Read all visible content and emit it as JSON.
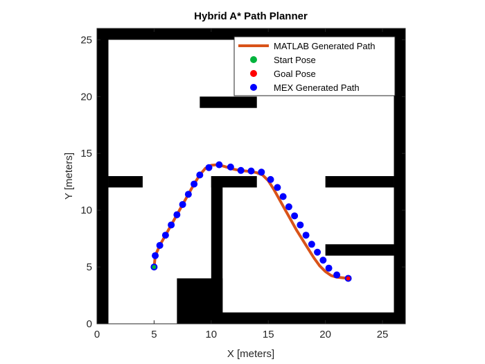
{
  "chart_data": {
    "type": "map-plot",
    "title": "Hybrid A* Path Planner",
    "xlabel": "X [meters]",
    "ylabel": "Y [meters]",
    "xlim": [
      0,
      27
    ],
    "ylim": [
      0,
      26
    ],
    "xticks": [
      0,
      5,
      10,
      15,
      20,
      25
    ],
    "yticks": [
      0,
      5,
      10,
      15,
      20,
      25
    ],
    "legend_position": "top-right",
    "colors": {
      "matlab_path": "#D95319",
      "start_pose": "#00B33C",
      "goal_pose": "#FF0000",
      "mex_path": "#0000FF",
      "obstacle": "#000000"
    },
    "legend": [
      {
        "label": "MATLAB Generated Path",
        "kind": "line",
        "color": "#D95319"
      },
      {
        "label": "Start Pose",
        "kind": "dot",
        "color": "#00B33C"
      },
      {
        "label": "Goal Pose",
        "kind": "dot",
        "color": "#FF0000"
      },
      {
        "label": "MEX Generated Path",
        "kind": "dot",
        "color": "#0000FF"
      }
    ],
    "obstacles": [
      {
        "x0": 0,
        "x1": 27,
        "y0": 25,
        "y1": 26
      },
      {
        "x0": 0,
        "x1": 1,
        "y0": 0,
        "y1": 26
      },
      {
        "x0": 26,
        "x1": 27,
        "y0": 0,
        "y1": 26
      },
      {
        "x0": 10,
        "x1": 27,
        "y0": 0,
        "y1": 1
      },
      {
        "x0": 7,
        "x1": 11,
        "y0": 0,
        "y1": 4
      },
      {
        "x0": 10,
        "x1": 11,
        "y0": 0,
        "y1": 13
      },
      {
        "x0": 10,
        "x1": 14,
        "y0": 12,
        "y1": 13
      },
      {
        "x0": 9,
        "x1": 14,
        "y0": 19,
        "y1": 20
      },
      {
        "x0": 1,
        "x1": 4,
        "y0": 12,
        "y1": 13
      },
      {
        "x0": 20,
        "x1": 26,
        "y0": 12,
        "y1": 13
      },
      {
        "x0": 20,
        "x1": 26,
        "y0": 6,
        "y1": 7
      }
    ],
    "matlab_path": {
      "x": [
        5,
        5.1,
        5.5,
        6,
        6.5,
        7,
        7.5,
        8,
        8.5,
        9,
        9.5,
        10,
        10.5,
        11,
        11.5,
        12,
        12.5,
        13,
        13.5,
        14,
        14.5,
        15,
        15.5,
        16,
        16.5,
        17,
        17.5,
        18,
        18.5,
        19,
        19.5,
        20,
        20.5,
        21,
        21.5,
        22
      ],
      "y": [
        5,
        6,
        6.9,
        7.8,
        8.7,
        9.6,
        10.5,
        11.4,
        12.3,
        13.1,
        13.7,
        13.95,
        14,
        13.9,
        13.75,
        13.6,
        13.5,
        13.45,
        13.4,
        13.3,
        13.1,
        12.6,
        11.8,
        10.9,
        10.0,
        9.1,
        8.2,
        7.4,
        6.6,
        5.8,
        5.1,
        4.6,
        4.25,
        4.1,
        4.05,
        4.0
      ]
    },
    "start_pose": {
      "x": 5,
      "y": 5
    },
    "goal_pose": {
      "x": 22,
      "y": 4
    },
    "mex_path": {
      "x": [
        5,
        5.1,
        5.5,
        6,
        6.5,
        7,
        7.5,
        8,
        8.5,
        9,
        9.8,
        10.7,
        11.7,
        12.6,
        13.5,
        14.4,
        15.2,
        15.8,
        16.3,
        16.8,
        17.3,
        17.8,
        18.3,
        18.8,
        19.3,
        19.8,
        20.3,
        21,
        22
      ],
      "y": [
        5,
        6,
        6.9,
        7.8,
        8.7,
        9.6,
        10.5,
        11.4,
        12.3,
        13.1,
        13.75,
        14.0,
        13.8,
        13.5,
        13.45,
        13.35,
        12.7,
        12.0,
        11.2,
        10.3,
        9.5,
        8.7,
        7.8,
        7.0,
        6.3,
        5.6,
        4.9,
        4.3,
        4.0
      ]
    }
  }
}
